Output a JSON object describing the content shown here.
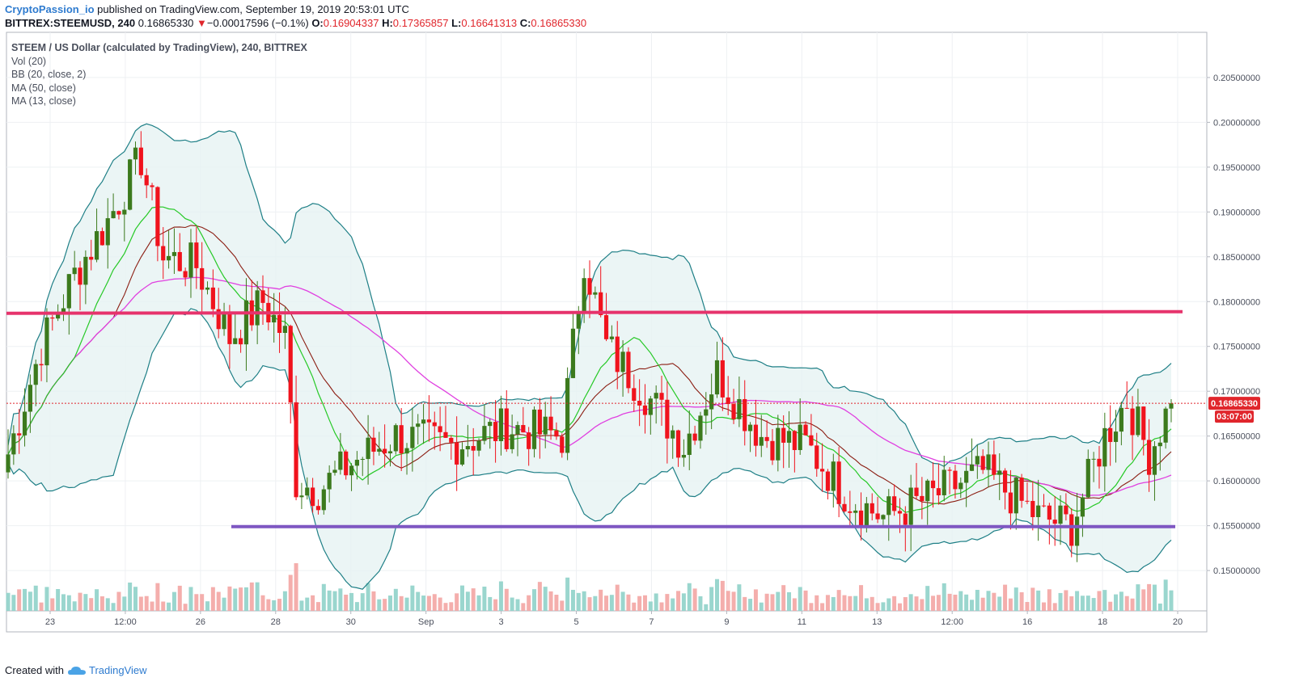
{
  "header": {
    "author": "CryptoPassion_io",
    "published": "published on TradingView.com, September 19, 2019 20:53:01 UTC",
    "symbol": "BITTREX:STEEMUSD, 240",
    "last": "0.16865330",
    "change": "−0.00017596 (−0.1%)",
    "o_label": "O:",
    "o_value": "0.16904337",
    "h_label": "H:",
    "h_value": "0.17365857",
    "l_label": "L:",
    "l_value": "0.16641313",
    "c_label": "C:",
    "c_value": "0.16865330"
  },
  "legend": {
    "title": "STEEM / US Dollar (calculated by TradingView), 240, BITTREX",
    "items": [
      "Vol (20)",
      "BB (20, close, 2)",
      "MA (50, close)",
      "MA (13, close)"
    ]
  },
  "price_badge": {
    "price": "0.16865330",
    "countdown": "03:07:00"
  },
  "footer": {
    "created_with": "Created with",
    "brand": "TradingView"
  },
  "colors": {
    "up": "#3c7a1d",
    "down": "#f0131d",
    "bb_line": "#1e7f86",
    "bb_fill": "#e6f3f3",
    "ma50": "#e040e0",
    "ma13": "#26c926",
    "bb_basis": "#8b1d12",
    "resistance": "#e6336c",
    "support": "#7e57c2",
    "vol_up": "#8fd1c9",
    "vol_down": "#f3a5a3",
    "price_line": "#e0262c"
  },
  "chart_data": {
    "type": "candlestick",
    "title": "STEEM / US Dollar (calculated by TradingView), 240, BITTREX",
    "timeframe": "240",
    "y_range": [
      0.1455,
      0.2095
    ],
    "y_ticks": [
      "0.20500000",
      "0.20000000",
      "0.19500000",
      "0.19000000",
      "0.18500000",
      "0.18000000",
      "0.17500000",
      "0.17000000",
      "0.16500000",
      "0.16000000",
      "0.15500000",
      "0.15000000"
    ],
    "x_ticks": [
      "23",
      "12:00",
      "26",
      "28",
      "30",
      "Sep",
      "3",
      "5",
      "7",
      "9",
      "11",
      "13",
      "12:00",
      "16",
      "18",
      "20"
    ],
    "horizontal_lines": [
      {
        "name": "resistance",
        "price": 0.1787
      },
      {
        "name": "support",
        "price": 0.1549
      }
    ],
    "last_price": 0.1686533,
    "anchors": [
      {
        "t": 0,
        "price": 0.163
      },
      {
        "t": 6,
        "price": 0.175
      },
      {
        "t": 12,
        "price": 0.183
      },
      {
        "t": 18,
        "price": 0.189
      },
      {
        "t": 24,
        "price": 0.196
      },
      {
        "t": 28,
        "price": 0.185
      },
      {
        "t": 34,
        "price": 0.184
      },
      {
        "t": 40,
        "price": 0.176
      },
      {
        "t": 46,
        "price": 0.18
      },
      {
        "t": 50,
        "price": 0.176
      },
      {
        "t": 52,
        "price": 0.16
      },
      {
        "t": 56,
        "price": 0.159
      },
      {
        "t": 62,
        "price": 0.162
      },
      {
        "t": 70,
        "price": 0.165
      },
      {
        "t": 80,
        "price": 0.164
      },
      {
        "t": 90,
        "price": 0.166
      },
      {
        "t": 100,
        "price": 0.165
      },
      {
        "t": 104,
        "price": 0.185
      },
      {
        "t": 108,
        "price": 0.175
      },
      {
        "t": 116,
        "price": 0.169
      },
      {
        "t": 122,
        "price": 0.164
      },
      {
        "t": 128,
        "price": 0.172
      },
      {
        "t": 136,
        "price": 0.165
      },
      {
        "t": 144,
        "price": 0.164
      },
      {
        "t": 152,
        "price": 0.158
      },
      {
        "t": 158,
        "price": 0.156
      },
      {
        "t": 166,
        "price": 0.158
      },
      {
        "t": 176,
        "price": 0.161
      },
      {
        "t": 186,
        "price": 0.156
      },
      {
        "t": 192,
        "price": 0.155
      },
      {
        "t": 198,
        "price": 0.165
      },
      {
        "t": 202,
        "price": 0.169
      },
      {
        "t": 206,
        "price": 0.163
      },
      {
        "t": 210,
        "price": 0.1687
      }
    ],
    "candle_count": 211,
    "series": [
      {
        "name": "BB (20, close, 2)"
      },
      {
        "name": "MA (50, close)"
      },
      {
        "name": "MA (13, close)"
      },
      {
        "name": "Vol (20)"
      }
    ]
  }
}
